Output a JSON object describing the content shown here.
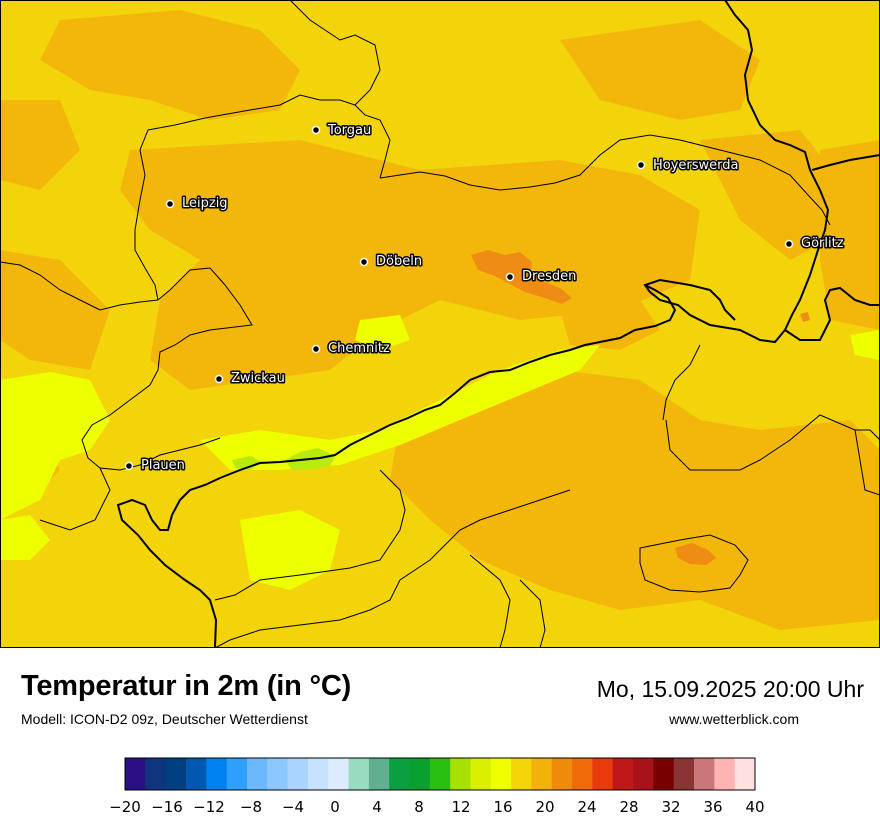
{
  "header": {
    "title": "Temperatur in 2m (in °C)",
    "model": "Modell: ICON-D2 09z, Deutscher Wetterdienst",
    "datetime": "Mo, 15.09.2025 20:00 Uhr",
    "website": "www.wetterblick.com"
  },
  "cities": [
    {
      "name": "Torgau"
    },
    {
      "name": "Hoyerswerda"
    },
    {
      "name": "Leipzig"
    },
    {
      "name": "Görlitz"
    },
    {
      "name": "Döbeln"
    },
    {
      "name": "Dresden"
    },
    {
      "name": "Chemnitz"
    },
    {
      "name": "Zwickau"
    },
    {
      "name": "Plauen"
    }
  ],
  "colorbar": {
    "unit": "°C",
    "min": -20,
    "max": 40,
    "step": 2,
    "tick_labels": [
      "−20",
      "−16",
      "−12",
      "−8",
      "−4",
      "0",
      "4",
      "8",
      "12",
      "16",
      "20",
      "24",
      "28",
      "32",
      "36",
      "40"
    ],
    "colors": [
      "#2a0f85",
      "#10357f",
      "#004080",
      "#0058b0",
      "#0082f0",
      "#2fa0ff",
      "#6cb8ff",
      "#8cc8ff",
      "#a8d4ff",
      "#c6e2ff",
      "#dcecff",
      "#98dcc0",
      "#60b090",
      "#08a040",
      "#0aa030",
      "#2ac010",
      "#a8e000",
      "#d8f000",
      "#f0ff00",
      "#f2d60a",
      "#f2b20a",
      "#f08a0a",
      "#f06a0a",
      "#e83a0a",
      "#c01818",
      "#a81218",
      "#780000",
      "#8a3434",
      "#c87878",
      "#ffb4b4",
      "#ffe0e0"
    ]
  },
  "map_colors": {
    "base": "#f3d40b",
    "warmer": "#f3b70c",
    "warmest": "#ee8c14",
    "cooler": "#eeff00",
    "coolest": "#b8ea0e",
    "border": "#000000"
  }
}
